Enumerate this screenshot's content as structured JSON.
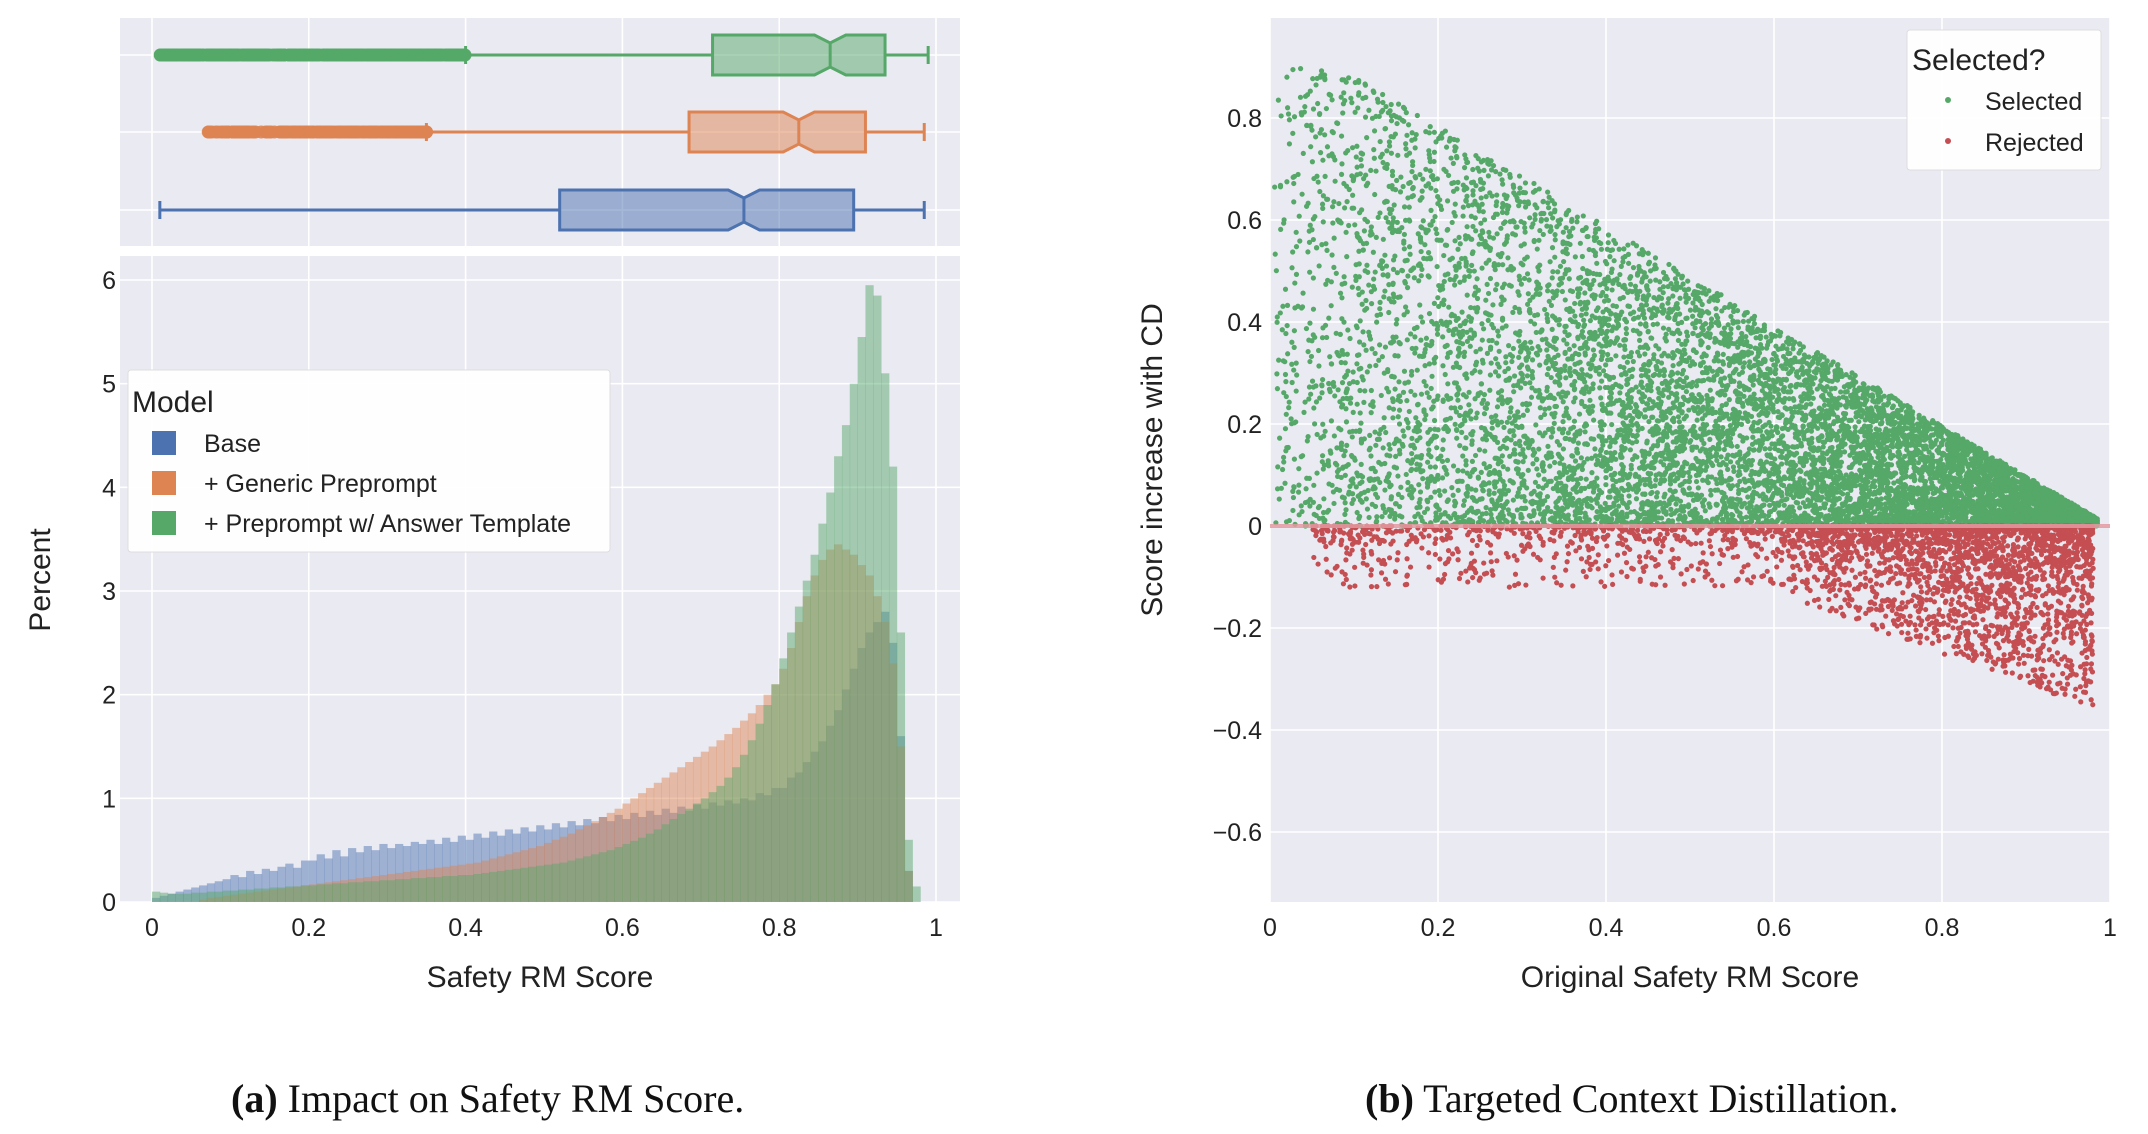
{
  "chart_data": [
    {
      "id": "a",
      "type": "histogram+boxplot",
      "xlabel": "Safety RM Score",
      "ylabel": "Percent",
      "xlim": [
        0,
        1
      ],
      "ylim": [
        0,
        6.2
      ],
      "xticks": [
        0,
        0.2,
        0.4,
        0.6,
        0.8,
        1
      ],
      "xtick_labels": [
        "0",
        "0.2",
        "0.4",
        "0.6",
        "0.8",
        "1"
      ],
      "yticks": [
        0,
        1,
        2,
        3,
        4,
        5,
        6
      ],
      "ytick_labels": [
        "0",
        "1",
        "2",
        "3",
        "4",
        "5",
        "6"
      ],
      "grid": true,
      "legend": {
        "title": "Model",
        "placement": "upper-left"
      },
      "bins": 100,
      "series": [
        {
          "name": "Base",
          "color": "#4c72b0",
          "box": {
            "min": 0.01,
            "q1": 0.52,
            "median": 0.755,
            "q3": 0.895,
            "max": 0.985
          },
          "hist": [
            0.04,
            0.06,
            0.08,
            0.1,
            0.12,
            0.14,
            0.16,
            0.18,
            0.2,
            0.22,
            0.26,
            0.24,
            0.3,
            0.27,
            0.32,
            0.3,
            0.34,
            0.37,
            0.33,
            0.4,
            0.4,
            0.46,
            0.42,
            0.5,
            0.44,
            0.52,
            0.48,
            0.54,
            0.5,
            0.56,
            0.52,
            0.56,
            0.54,
            0.58,
            0.56,
            0.6,
            0.56,
            0.62,
            0.58,
            0.64,
            0.6,
            0.66,
            0.62,
            0.68,
            0.64,
            0.7,
            0.66,
            0.72,
            0.68,
            0.74,
            0.7,
            0.76,
            0.72,
            0.78,
            0.74,
            0.8,
            0.76,
            0.82,
            0.78,
            0.84,
            0.8,
            0.86,
            0.82,
            0.88,
            0.84,
            0.9,
            0.86,
            0.92,
            0.88,
            0.94,
            0.9,
            0.96,
            0.93,
            0.98,
            0.95,
            1.0,
            0.98,
            1.05,
            1.03,
            1.1,
            1.1,
            1.2,
            1.25,
            1.35,
            1.45,
            1.55,
            1.7,
            1.85,
            2.05,
            2.25,
            2.45,
            2.6,
            2.7,
            2.8,
            2.5,
            1.6,
            0.3,
            0.0,
            0.0,
            0.0
          ]
        },
        {
          "name": "+ Generic Preprompt",
          "color": "#dd8452",
          "box": {
            "min": 0.07,
            "q1": 0.685,
            "median": 0.825,
            "q3": 0.91,
            "max": 0.985
          },
          "hist": [
            0.0,
            0.0,
            0.0,
            0.0,
            0.0,
            0.0,
            0.02,
            0.04,
            0.05,
            0.06,
            0.07,
            0.08,
            0.09,
            0.1,
            0.11,
            0.12,
            0.13,
            0.14,
            0.15,
            0.16,
            0.17,
            0.18,
            0.19,
            0.2,
            0.21,
            0.22,
            0.23,
            0.24,
            0.25,
            0.26,
            0.27,
            0.28,
            0.29,
            0.3,
            0.31,
            0.32,
            0.33,
            0.34,
            0.35,
            0.36,
            0.37,
            0.38,
            0.4,
            0.42,
            0.44,
            0.46,
            0.48,
            0.5,
            0.52,
            0.54,
            0.57,
            0.6,
            0.63,
            0.66,
            0.7,
            0.74,
            0.78,
            0.82,
            0.86,
            0.9,
            0.95,
            1.0,
            1.05,
            1.1,
            1.15,
            1.2,
            1.25,
            1.3,
            1.35,
            1.4,
            1.45,
            1.5,
            1.56,
            1.62,
            1.68,
            1.75,
            1.82,
            1.9,
            2.0,
            2.1,
            2.25,
            2.45,
            2.7,
            2.95,
            3.15,
            3.3,
            3.4,
            3.45,
            3.4,
            3.35,
            3.25,
            3.15,
            2.95,
            2.7,
            2.3,
            1.5,
            0.3,
            0.0,
            0.0,
            0.0
          ]
        },
        {
          "name": "+ Preprompt w/ Answer Template",
          "color": "#55a868",
          "box": {
            "min": 0.01,
            "q1": 0.715,
            "median": 0.865,
            "q3": 0.935,
            "max": 0.99
          },
          "hist": [
            0.1,
            0.09,
            0.08,
            0.08,
            0.08,
            0.09,
            0.09,
            0.1,
            0.1,
            0.11,
            0.11,
            0.12,
            0.12,
            0.13,
            0.13,
            0.14,
            0.14,
            0.15,
            0.15,
            0.16,
            0.16,
            0.17,
            0.17,
            0.18,
            0.18,
            0.19,
            0.19,
            0.2,
            0.2,
            0.21,
            0.21,
            0.22,
            0.22,
            0.23,
            0.23,
            0.24,
            0.24,
            0.25,
            0.25,
            0.26,
            0.26,
            0.27,
            0.28,
            0.29,
            0.3,
            0.31,
            0.32,
            0.33,
            0.34,
            0.35,
            0.36,
            0.37,
            0.38,
            0.4,
            0.42,
            0.44,
            0.46,
            0.48,
            0.5,
            0.53,
            0.56,
            0.59,
            0.62,
            0.66,
            0.7,
            0.75,
            0.8,
            0.85,
            0.9,
            0.95,
            1.0,
            1.06,
            1.12,
            1.2,
            1.3,
            1.42,
            1.56,
            1.72,
            1.9,
            2.1,
            2.35,
            2.6,
            2.85,
            3.1,
            3.35,
            3.65,
            3.95,
            4.3,
            4.6,
            5.0,
            5.45,
            5.95,
            5.85,
            5.1,
            4.2,
            2.6,
            0.6,
            0.15,
            0.0,
            0.0
          ]
        }
      ]
    },
    {
      "id": "b",
      "type": "scatter",
      "xlabel": "Original Safety RM Score",
      "ylabel": "Score increase with CD",
      "xlim": [
        0,
        1
      ],
      "ylim": [
        -0.73,
        0.95
      ],
      "xticks": [
        0,
        0.2,
        0.4,
        0.6,
        0.8,
        1
      ],
      "xtick_labels": [
        "0",
        "0.2",
        "0.4",
        "0.6",
        "0.8",
        "1"
      ],
      "yticks": [
        -0.6,
        -0.4,
        -0.2,
        0,
        0.2,
        0.4,
        0.6,
        0.8
      ],
      "ytick_labels": [
        "−0.6",
        "−0.4",
        "−0.2",
        "0",
        "0.2",
        "0.4",
        "0.6",
        "0.8"
      ],
      "grid": true,
      "reference_line_y": 0,
      "legend": {
        "title": "Selected?",
        "placement": "upper-right"
      },
      "series": [
        {
          "name": "Selected",
          "color": "#55a868",
          "points": 9000,
          "region": "y >= 0, y <= 1 - x"
        },
        {
          "name": "Rejected",
          "color": "#c44e52",
          "points": 3000,
          "region": "y < 0, concentrated near x = 0.8"
        }
      ]
    }
  ],
  "captions": [
    {
      "label": "(a)",
      "text": "Impact on Safety RM Score."
    },
    {
      "label": "(b)",
      "text": "Targeted Context Distillation."
    }
  ]
}
